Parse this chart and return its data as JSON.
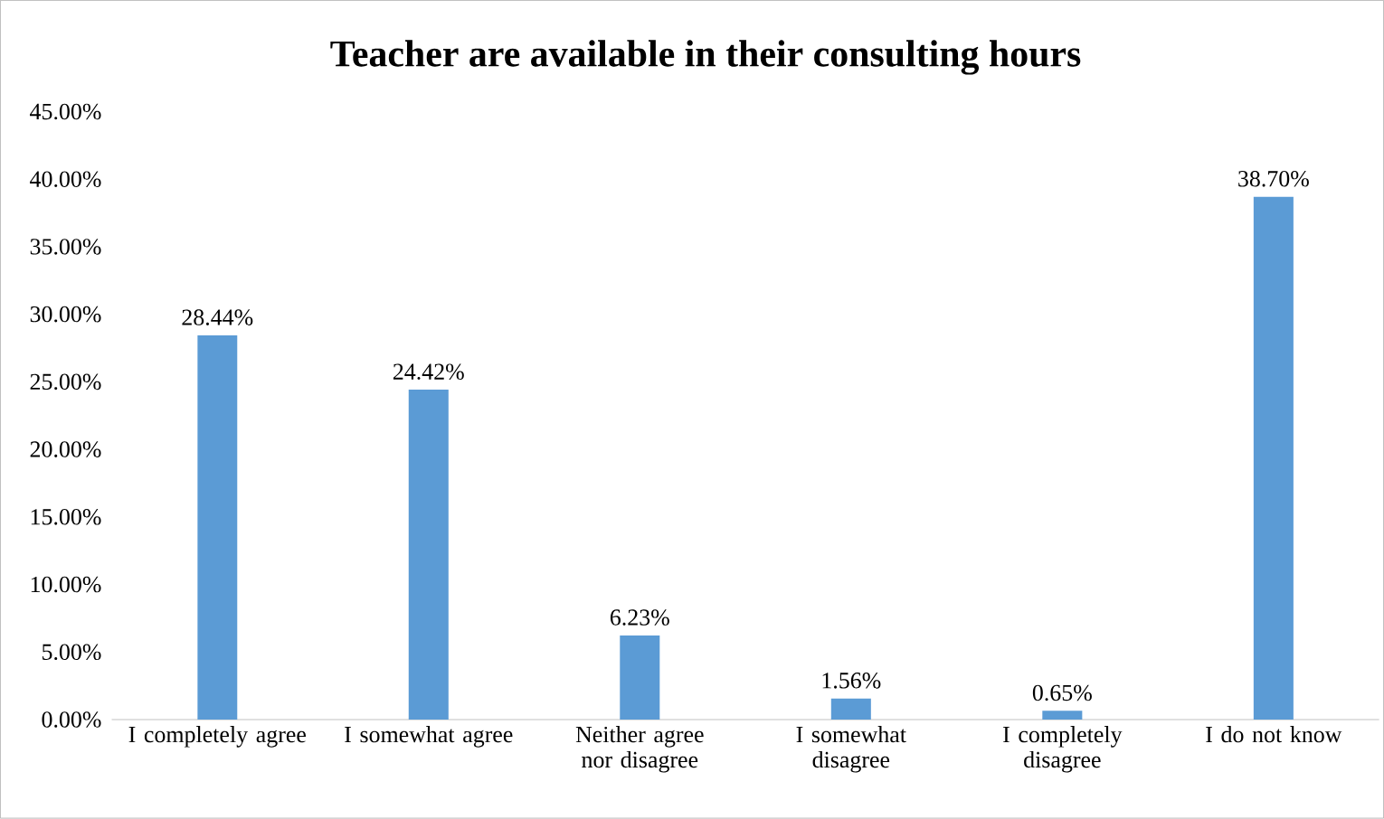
{
  "chart_data": {
    "type": "bar",
    "title": "Teacher are available in their consulting hours",
    "categories": [
      "I completely agree",
      "I somewhat agree",
      "Neither agree nor disagree",
      "I somewhat disagree",
      "I completely disagree",
      "I do not know"
    ],
    "values": [
      28.44,
      24.42,
      6.23,
      1.56,
      0.65,
      38.7
    ],
    "value_labels": [
      "28.44%",
      "24.42%",
      "6.23%",
      "1.56%",
      "0.65%",
      "38.70%"
    ],
    "color": "#5b9bd5",
    "ylim": [
      0,
      45
    ],
    "yticks": [
      {
        "value": 0,
        "label": "0.00%"
      },
      {
        "value": 5,
        "label": "5.00%"
      },
      {
        "value": 10,
        "label": "10.00%"
      },
      {
        "value": 15,
        "label": "15.00%"
      },
      {
        "value": 20,
        "label": "20.00%"
      },
      {
        "value": 25,
        "label": "25.00%"
      },
      {
        "value": 30,
        "label": "30.00%"
      },
      {
        "value": 35,
        "label": "35.00%"
      },
      {
        "value": 40,
        "label": "40.00%"
      },
      {
        "value": 45,
        "label": "45.00%"
      }
    ]
  }
}
